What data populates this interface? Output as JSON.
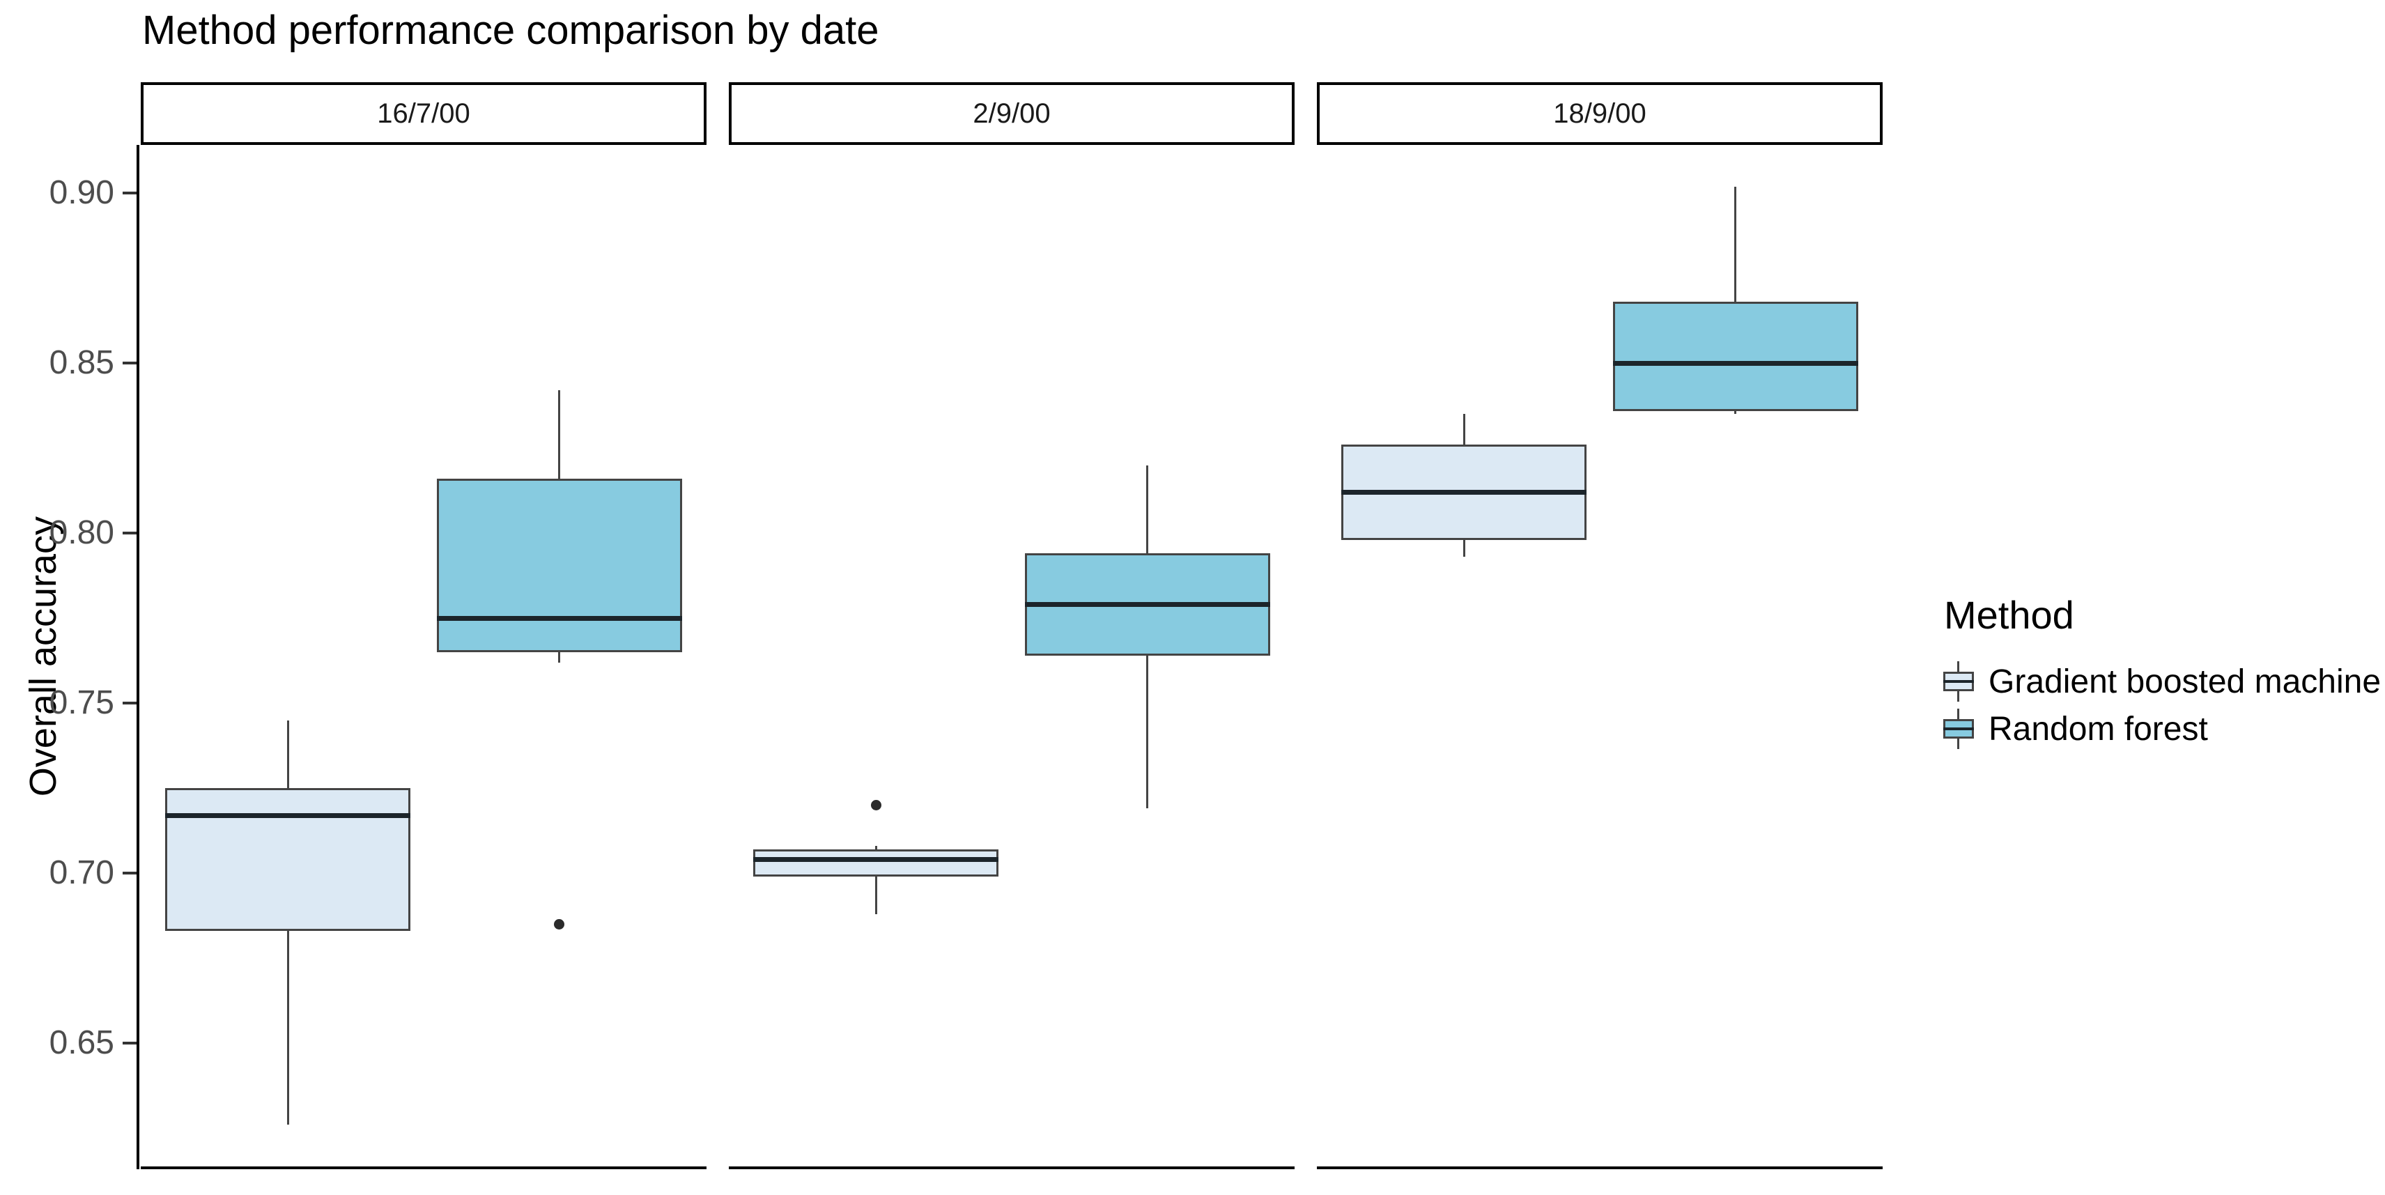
{
  "title": "Method performance comparison by date",
  "y_axis": {
    "label": "Overall accuracy",
    "ticks": [
      {
        "label": "0.90",
        "value": 0.9
      },
      {
        "label": "0.85",
        "value": 0.85
      },
      {
        "label": "0.80",
        "value": 0.8
      },
      {
        "label": "0.75",
        "value": 0.75
      },
      {
        "label": "0.70",
        "value": 0.7
      },
      {
        "label": "0.65",
        "value": 0.65
      }
    ]
  },
  "facets": [
    "16/7/00",
    "2/9/00",
    "18/9/00"
  ],
  "legend": {
    "title": "Method",
    "entries": [
      {
        "label": "Gradient boosted machine",
        "color": "#dce9f4"
      },
      {
        "label": "Random forest",
        "color": "#87cbe0"
      }
    ]
  },
  "chart_data": {
    "type": "boxplot",
    "title": "Method performance comparison by date",
    "ylabel": "Overall accuracy",
    "ylim": [
      0.613,
      0.914
    ],
    "yticks": [
      0.65,
      0.7,
      0.75,
      0.8,
      0.85,
      0.9
    ],
    "grid": false,
    "legend_position": "right",
    "facet_labels": [
      "16/7/00",
      "2/9/00",
      "18/9/00"
    ],
    "series": [
      {
        "name": "Gradient boosted machine",
        "fill": "#dce9f4",
        "boxes": [
          {
            "facet": "16/7/00",
            "whisker_low": 0.626,
            "q1": 0.683,
            "median": 0.717,
            "q3": 0.725,
            "whisker_high": 0.745,
            "outliers": []
          },
          {
            "facet": "2/9/00",
            "whisker_low": 0.688,
            "q1": 0.699,
            "median": 0.704,
            "q3": 0.707,
            "whisker_high": 0.708,
            "outliers": [
              0.72
            ]
          },
          {
            "facet": "18/9/00",
            "whisker_low": 0.793,
            "q1": 0.798,
            "median": 0.812,
            "q3": 0.826,
            "whisker_high": 0.835,
            "outliers": []
          }
        ]
      },
      {
        "name": "Random forest",
        "fill": "#87cbe0",
        "boxes": [
          {
            "facet": "16/7/00",
            "whisker_low": 0.762,
            "q1": 0.765,
            "median": 0.775,
            "q3": 0.816,
            "whisker_high": 0.842,
            "outliers": [
              0.685
            ]
          },
          {
            "facet": "2/9/00",
            "whisker_low": 0.719,
            "q1": 0.764,
            "median": 0.779,
            "q3": 0.794,
            "whisker_high": 0.82,
            "outliers": []
          },
          {
            "facet": "18/9/00",
            "whisker_low": 0.835,
            "q1": 0.836,
            "median": 0.85,
            "q3": 0.868,
            "whisker_high": 0.902,
            "outliers": []
          }
        ]
      }
    ]
  }
}
